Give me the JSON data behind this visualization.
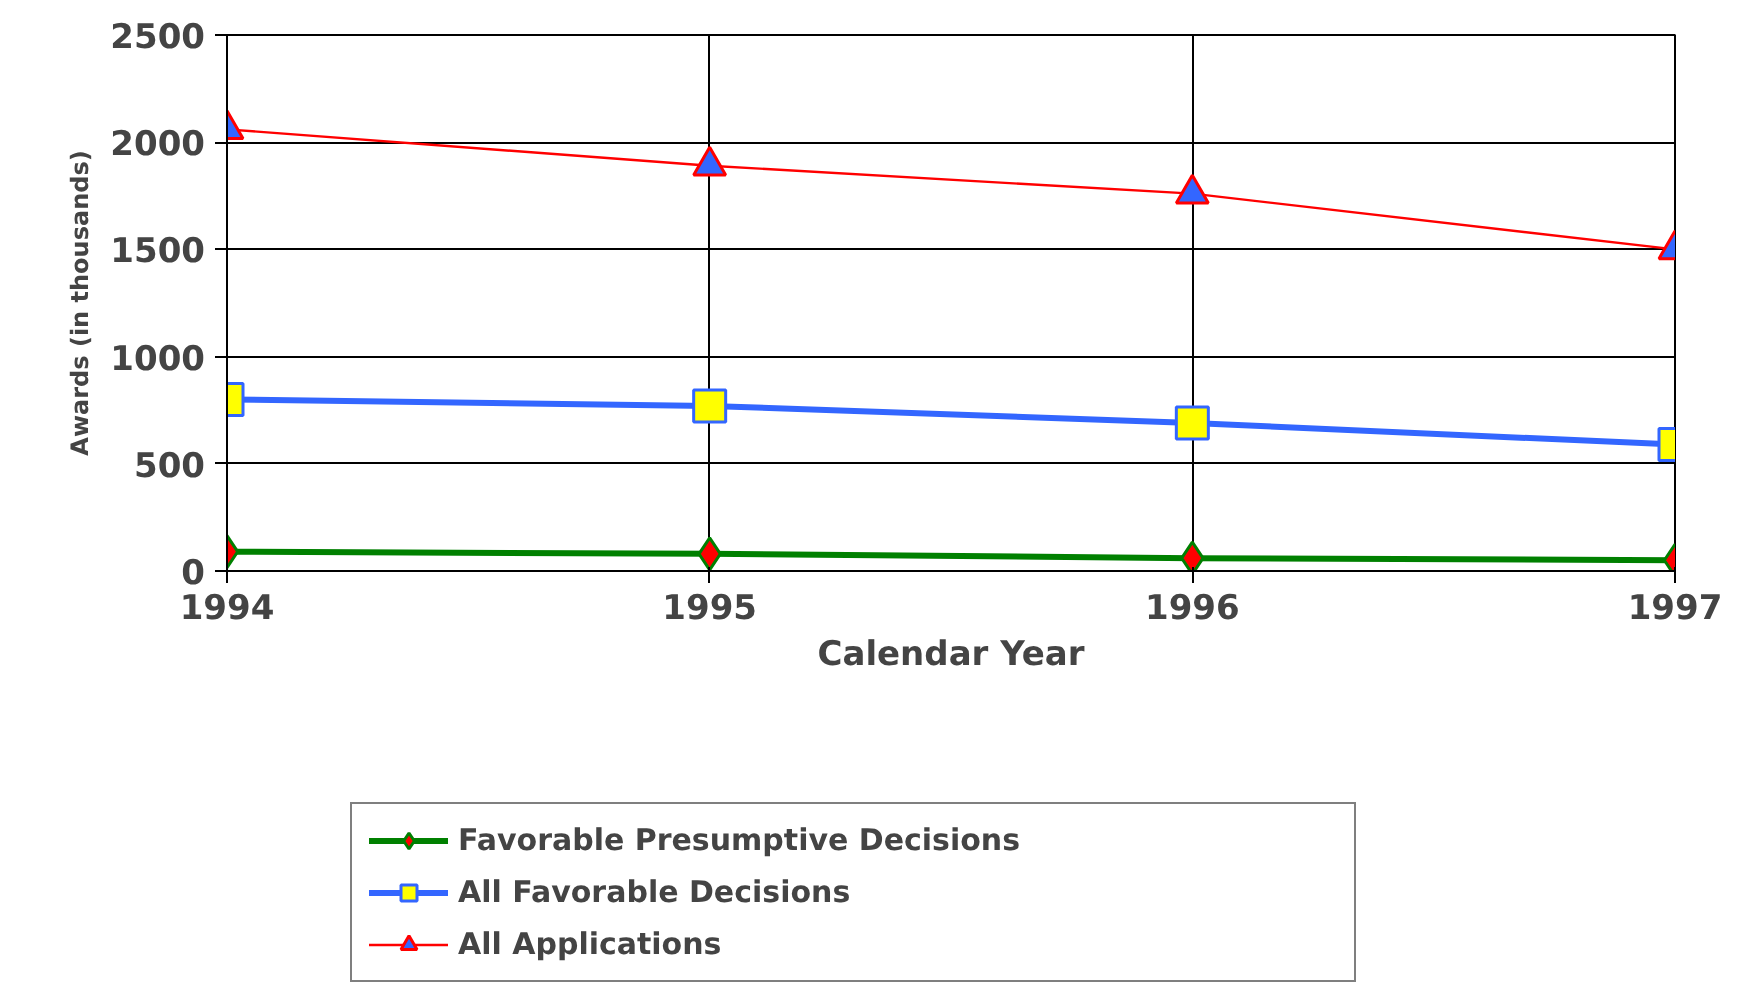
{
  "chart_data": {
    "type": "line",
    "xlabel": "Calendar Year",
    "ylabel": "Awards (in thousands)",
    "x": [
      1994,
      1995,
      1996,
      1997
    ],
    "xlim": [
      1994,
      1997
    ],
    "xticks": [
      1994,
      1995,
      1996,
      1997
    ],
    "ylim": [
      0,
      2500
    ],
    "yticks": [
      0,
      500,
      1000,
      1500,
      2000,
      2500
    ],
    "grid": true,
    "legend": "bottom",
    "series": [
      {
        "name": "Favorable Presumptive Decisions",
        "color": "#008000",
        "marker": "diamond",
        "colors": [
          "#ff0000",
          "#ff0000",
          "#ff0000",
          "#ff0000"
        ],
        "values": [
          90,
          80,
          60,
          50
        ]
      },
      {
        "name": "All Favorable Decisions",
        "color": "#3366ff",
        "marker": "square",
        "colors": [
          "#ffff00",
          "#ffff00",
          "#ffff00",
          "#ffff00"
        ],
        "values": [
          800,
          770,
          690,
          590
        ]
      },
      {
        "name": "All Applications",
        "color": "#ff0000",
        "marker": "triangle",
        "colors": [
          "#3366ff",
          "#3366ff",
          "#3366ff",
          "#3366ff"
        ],
        "values": [
          2060,
          1890,
          1760,
          1500
        ]
      }
    ]
  }
}
